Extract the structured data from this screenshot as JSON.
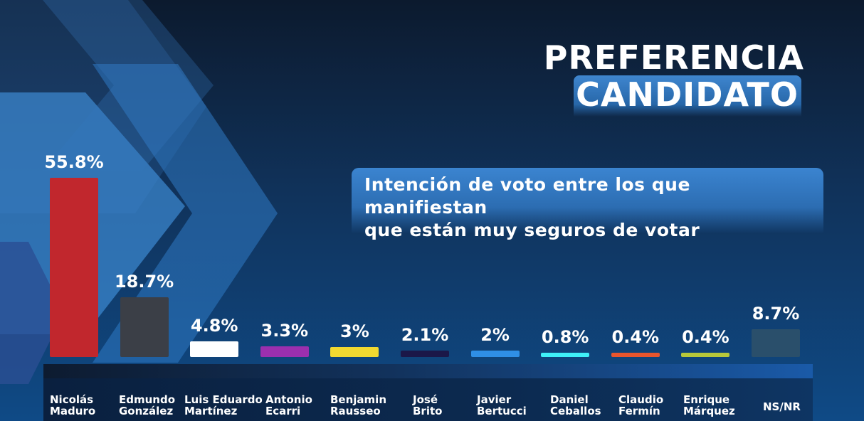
{
  "header": {
    "title_line1": "PREFERENCIA",
    "title_line2": "CANDIDATO"
  },
  "subtitle_lines": [
    "Intención de voto entre los que manifiestan",
    "que están muy seguros de votar"
  ],
  "chart_data": {
    "type": "bar",
    "title": "PREFERENCIA CANDIDATO",
    "subtitle": "Intención de voto entre los que manifiestan que están muy seguros de votar",
    "xlabel": "",
    "ylabel": "",
    "ylim": [
      0,
      60
    ],
    "grid": false,
    "legend": "none",
    "categories": [
      [
        "Nicolás",
        "Maduro"
      ],
      [
        "Edmundo",
        "González"
      ],
      [
        "Luis Eduardo",
        "Martínez"
      ],
      [
        "Antonio",
        "Ecarri"
      ],
      [
        "Benjamin",
        "Rausseo"
      ],
      [
        "José",
        "Brito"
      ],
      [
        "Javier",
        "Bertucci"
      ],
      [
        "Daniel",
        "Ceballos"
      ],
      [
        "Claudio",
        "Fermín"
      ],
      [
        "Enrique",
        "Márquez"
      ],
      [
        "NS/NR"
      ]
    ],
    "values": [
      55.8,
      18.7,
      4.8,
      3.3,
      3,
      2.1,
      2,
      0.8,
      0.4,
      0.4,
      8.7
    ],
    "value_labels": [
      "55.8%",
      "18.7%",
      "4.8%",
      "3.3%",
      "3%",
      "2.1%",
      "2%",
      "0.8%",
      "0.4%",
      "0.4%",
      "8.7%"
    ],
    "colors": [
      "#c1272d",
      "#3b3f47",
      "#ffffff",
      "#9b2fae",
      "#f2d930",
      "#1b1748",
      "#2f8fe6",
      "#3ff0f7",
      "#e8552d",
      "#b8c83a",
      "#2a4f6b"
    ]
  }
}
